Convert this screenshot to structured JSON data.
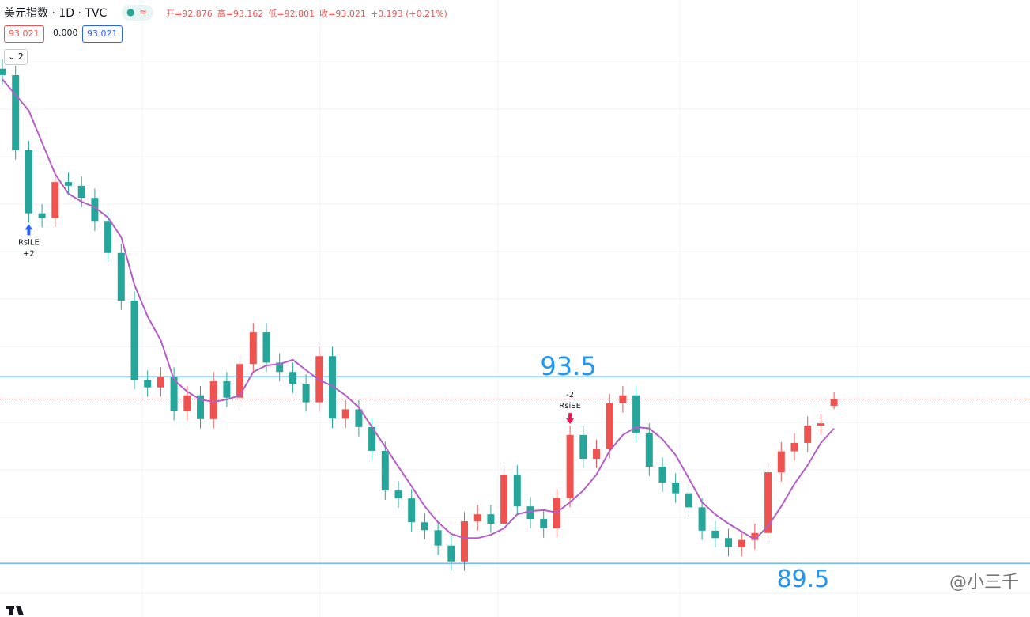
{
  "header": {
    "title": "美元指数 · 1D · TVC",
    "ohlc": [
      "开=92.876",
      "高=93.162",
      "低=92.801",
      "收=93.021",
      "+0.193 (+0.21%)"
    ],
    "price_boxes": [
      "93.021",
      "0.000",
      "93.021"
    ],
    "collapse_button": "2"
  },
  "watermark": "@小三千",
  "chart_data": {
    "type": "candlestick",
    "open": [
      100.1,
      99.96,
      98.35,
      97.0,
      96.9,
      97.67,
      97.59,
      97.33,
      96.82,
      96.15,
      95.13,
      93.43,
      93.27,
      93.5,
      92.76,
      93.1,
      92.59,
      93.4,
      93.05,
      93.77,
      94.45,
      93.8,
      93.6,
      93.35,
      92.95,
      93.94,
      92.6,
      92.8,
      92.42,
      91.91,
      91.06,
      90.89,
      90.38,
      90.21,
      89.88,
      89.54,
      90.4,
      90.55,
      90.35,
      91.4,
      90.72,
      90.45,
      90.25,
      90.9,
      92.25,
      91.74,
      91.95,
      92.93,
      93.1,
      92.3,
      91.57,
      91.23,
      91.0,
      90.7,
      90.2,
      90.04,
      89.85,
      90.0,
      90.15,
      91.45,
      91.9,
      92.08,
      92.45,
      92.876
    ],
    "high": [
      100.3,
      100.16,
      98.55,
      97.2,
      97.87,
      97.87,
      97.79,
      97.53,
      97.02,
      96.35,
      95.33,
      93.63,
      93.7,
      93.7,
      93.3,
      93.3,
      93.6,
      93.6,
      93.97,
      94.65,
      94.65,
      94.0,
      93.8,
      93.55,
      94.14,
      94.14,
      93.0,
      93.0,
      92.62,
      92.11,
      91.26,
      91.09,
      90.58,
      90.41,
      90.08,
      90.6,
      90.75,
      90.75,
      91.6,
      91.6,
      90.92,
      90.65,
      91.1,
      92.45,
      92.45,
      92.15,
      93.13,
      93.3,
      93.3,
      92.5,
      91.77,
      91.43,
      91.2,
      90.9,
      90.4,
      90.24,
      90.2,
      90.35,
      91.65,
      92.1,
      92.28,
      92.65,
      92.7,
      93.162
    ],
    "low": [
      99.76,
      98.15,
      96.8,
      96.7,
      96.7,
      97.39,
      97.13,
      96.62,
      95.95,
      94.93,
      93.23,
      93.07,
      93.07,
      92.56,
      92.56,
      92.39,
      92.39,
      92.85,
      92.85,
      93.57,
      93.6,
      93.4,
      93.15,
      92.75,
      92.75,
      92.4,
      92.4,
      92.22,
      91.71,
      90.86,
      90.69,
      90.18,
      90.01,
      89.68,
      89.34,
      89.34,
      90.2,
      90.15,
      90.15,
      90.52,
      90.25,
      90.05,
      90.05,
      90.7,
      91.54,
      91.54,
      91.75,
      92.73,
      92.1,
      91.37,
      91.03,
      90.8,
      90.5,
      90.0,
      89.84,
      89.65,
      89.65,
      89.8,
      89.95,
      91.25,
      91.7,
      91.88,
      92.25,
      92.801
    ],
    "close": [
      99.96,
      98.35,
      97.0,
      96.9,
      97.67,
      97.59,
      97.33,
      96.82,
      96.15,
      95.13,
      93.43,
      93.27,
      93.5,
      92.76,
      93.1,
      92.59,
      93.4,
      93.05,
      93.77,
      94.45,
      93.8,
      93.6,
      93.35,
      92.95,
      93.94,
      92.6,
      92.8,
      92.42,
      91.91,
      91.06,
      90.89,
      90.38,
      90.21,
      89.88,
      89.54,
      90.4,
      90.55,
      90.35,
      91.4,
      90.72,
      90.45,
      90.25,
      90.9,
      92.25,
      91.74,
      91.95,
      92.93,
      93.1,
      92.3,
      91.57,
      91.23,
      91.0,
      90.7,
      90.2,
      90.04,
      89.85,
      90.0,
      90.15,
      91.45,
      91.9,
      92.08,
      92.45,
      92.5,
      93.021
    ],
    "up_color": "#ef5350",
    "down_color": "#26a69a",
    "ylim": [
      88.35,
      101.57
    ],
    "ma": {
      "color": "#b55ec9",
      "values": [
        99.87,
        99.54,
        99.2,
        98.52,
        97.84,
        97.42,
        97.25,
        97.13,
        96.91,
        96.49,
        95.47,
        94.79,
        94.28,
        93.43,
        93.18,
        93.01,
        92.96,
        93.01,
        93.1,
        93.6,
        93.74,
        93.77,
        93.86,
        93.64,
        93.43,
        93.3,
        93.1,
        92.84,
        92.42,
        92.0,
        91.57,
        91.15,
        90.72,
        90.38,
        90.13,
        90.04,
        90.04,
        90.11,
        90.25,
        90.55,
        90.62,
        90.64,
        90.59,
        90.81,
        91.06,
        91.4,
        91.91,
        92.25,
        92.42,
        92.39,
        92.16,
        91.82,
        91.32,
        90.81,
        90.55,
        90.35,
        90.18,
        90.01,
        90.3,
        90.72,
        91.2,
        91.6,
        92.08,
        92.39
      ]
    },
    "hlines": [
      93.5,
      89.5
    ],
    "hline_color": "#2196f3",
    "signals": [
      {
        "text": "RsiLE",
        "qty": "+2",
        "color": "#2962ff"
      },
      {
        "text": "RsiSE",
        "qty": "-2",
        "color": "#f0134d"
      }
    ]
  }
}
